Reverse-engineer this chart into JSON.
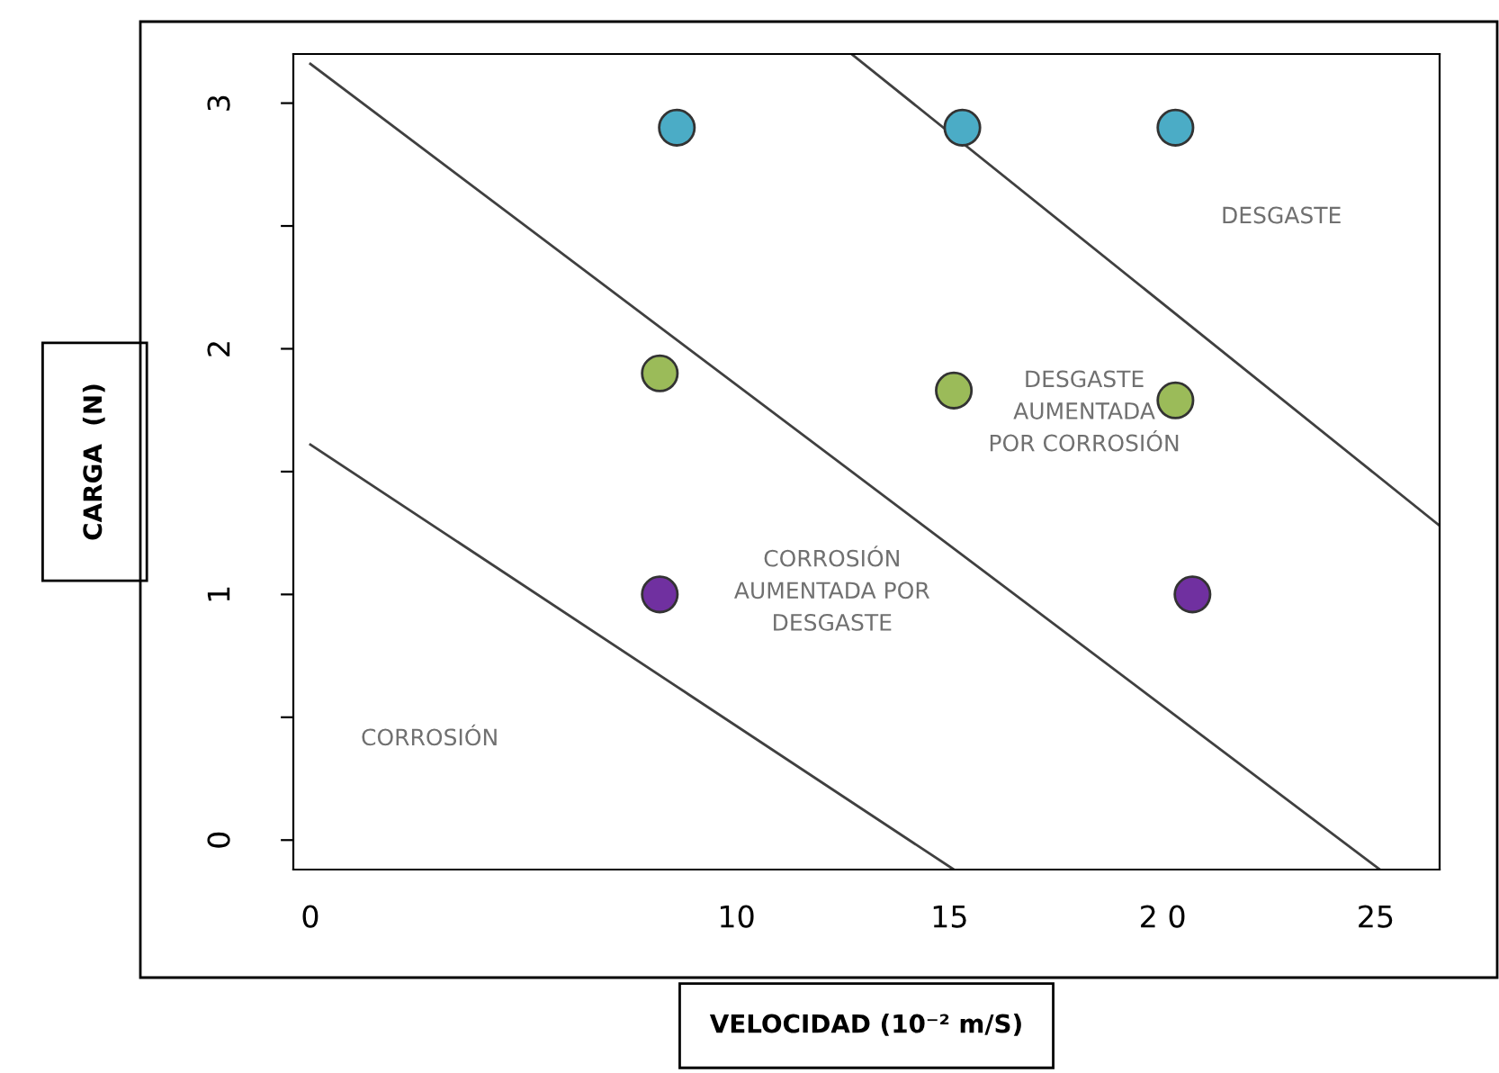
{
  "chart_data": {
    "type": "scatter",
    "xlabel": "VELOCIDAD (10⁻² m/S)",
    "ylabel": "CARGA  (N)",
    "xlim": [
      -0.4,
      26.5
    ],
    "ylim": [
      -0.12,
      3.2
    ],
    "xticks": [
      0,
      10,
      15,
      {
        "value": 20,
        "label": "2 0"
      },
      25
    ],
    "yticks": [
      0,
      {
        "value": 0.5,
        "label": null
      },
      1,
      {
        "value": 1.5,
        "label": null
      },
      2,
      {
        "value": 2.5,
        "label": null
      },
      3
    ],
    "grid": false,
    "legend": false,
    "marker": "circle",
    "series": [
      {
        "color": "#4bacc6",
        "x": [
          8.6,
          15.3,
          20.3
        ],
        "values": [
          2.9,
          2.9,
          2.9
        ]
      },
      {
        "color": "#9bbb59",
        "x": [
          8.2,
          15.1,
          20.3
        ],
        "values": [
          1.9,
          1.83,
          1.79
        ]
      },
      {
        "color": "#7030a0",
        "x": [
          8.2,
          20.7
        ],
        "values": [
          1.0,
          1.0
        ]
      },
      {
        "type": "line",
        "color": "#404040",
        "x": [
          0,
          15.1
        ],
        "values": [
          1.61,
          -0.12
        ],
        "marker": "none"
      },
      {
        "type": "line",
        "color": "#404040",
        "x": [
          0,
          25.1
        ],
        "values": [
          3.16,
          -0.12
        ],
        "marker": "none"
      },
      {
        "type": "line",
        "color": "#404040",
        "x": [
          12.7,
          26.5
        ],
        "values": [
          3.2,
          1.28
        ],
        "marker": "none"
      }
    ],
    "annotations": [
      "DESGASTE",
      "DESGASTE\nAUMENTADA\nPOR CORROSIÓN",
      "CORROSIÓN\nAUMENTADA POR\nDESGASTE",
      "CORROSIÓN"
    ]
  }
}
